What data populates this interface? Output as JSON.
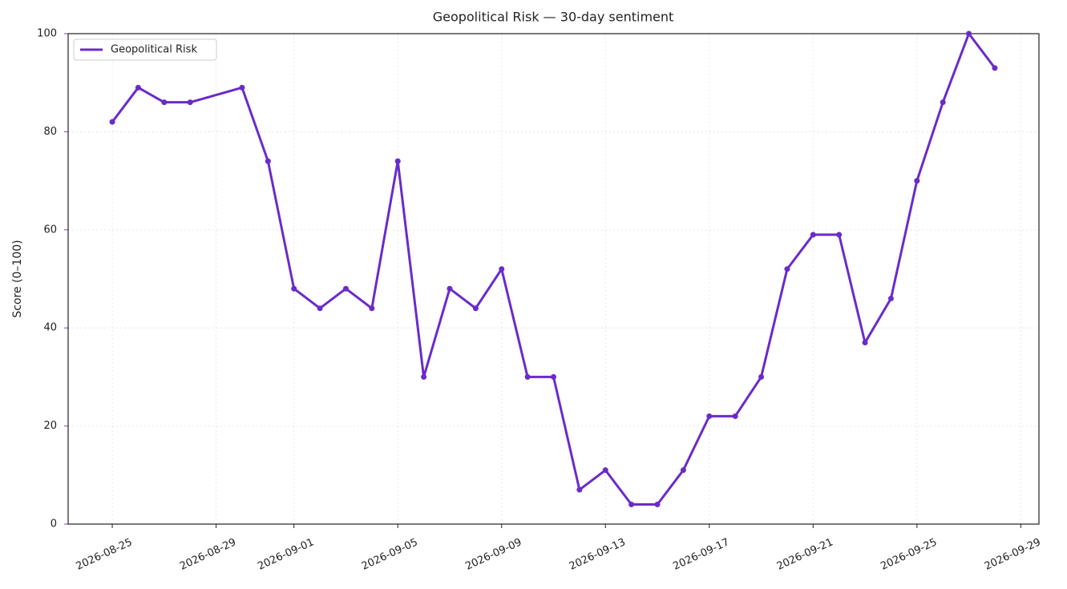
{
  "chart_data": {
    "type": "line",
    "title": "Geopolitical Risk — 30-day sentiment",
    "y_label": "Score (0–100)",
    "x": [
      "2026-08-25",
      "2026-08-26",
      "2026-08-27",
      "2026-08-28",
      "2026-08-30",
      "2026-08-31",
      "2026-09-01",
      "2026-09-02",
      "2026-09-03",
      "2026-09-04",
      "2026-09-05",
      "2026-09-06",
      "2026-09-07",
      "2026-09-08",
      "2026-09-09",
      "2026-09-10",
      "2026-09-11",
      "2026-09-12",
      "2026-09-13",
      "2026-09-14",
      "2026-09-15",
      "2026-09-16",
      "2026-09-17",
      "2026-09-18",
      "2026-09-19",
      "2026-09-20",
      "2026-09-21",
      "2026-09-22",
      "2026-09-23",
      "2026-09-24",
      "2026-09-25",
      "2026-09-26",
      "2026-09-27",
      "2026-09-28"
    ],
    "series": [
      {
        "name": "Geopolitical Risk",
        "color": "#6a2bc9",
        "values": [
          82,
          89,
          86,
          86,
          89,
          74,
          48,
          44,
          48,
          44,
          74,
          30,
          48,
          44,
          52,
          30,
          30,
          7,
          11,
          4,
          4,
          11,
          22,
          22,
          30,
          52,
          59,
          59,
          37,
          46,
          70,
          86,
          100,
          93
        ]
      }
    ],
    "xlim": [
      "2026-08-23T07:12:00Z",
      "2026-09-29T16:48:00Z"
    ],
    "xticks": [
      "2026-08-25",
      "2026-08-29",
      "2026-09-01",
      "2026-09-05",
      "2026-09-09",
      "2026-09-13",
      "2026-09-17",
      "2026-09-21",
      "2026-09-25",
      "2026-09-29"
    ],
    "ylim": [
      0,
      100
    ],
    "yticks": [
      0,
      20,
      40,
      60,
      80,
      100
    ],
    "grid": true,
    "legend": "upper left",
    "y_axis_color": "#7b3fbf"
  }
}
